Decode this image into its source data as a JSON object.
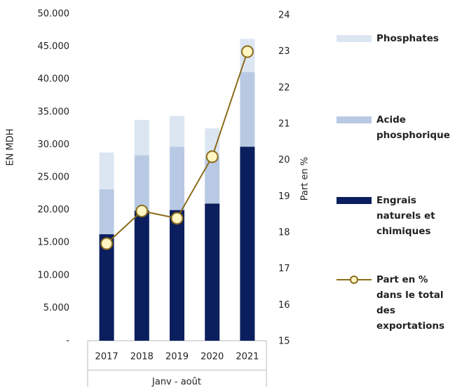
{
  "chart_data": {
    "type": "bar",
    "categories": [
      "2017",
      "2018",
      "2019",
      "2020",
      "2021"
    ],
    "x_label": "Janv - août",
    "y_label": "EN MDH",
    "y2_label": "Part en %",
    "stacked": true,
    "ylim": [
      0,
      50000
    ],
    "yticks": [
      {
        "value": 0,
        "label": "-"
      },
      {
        "value": 5000,
        "label": "5.000"
      },
      {
        "value": 10000,
        "label": "10.000"
      },
      {
        "value": 15000,
        "label": "15.000"
      },
      {
        "value": 20000,
        "label": "20.000"
      },
      {
        "value": 25000,
        "label": "25.000"
      },
      {
        "value": 30000,
        "label": "30.000"
      },
      {
        "value": 35000,
        "label": "35.000"
      },
      {
        "value": 40000,
        "label": "40.000"
      },
      {
        "value": 45000,
        "label": "45.000"
      },
      {
        "value": 50000,
        "label": "50.000"
      }
    ],
    "y2lim": [
      15,
      24
    ],
    "y2ticks": [
      15,
      16,
      17,
      18,
      19,
      20,
      21,
      22,
      23,
      24
    ],
    "series": [
      {
        "name": "Phosphates",
        "color": "#dce6f2",
        "type": "bar",
        "values": [
          5600,
          5400,
          4700,
          4500,
          5100
        ]
      },
      {
        "name": "Acide phosphorique",
        "color": "#b8cae3",
        "type": "bar",
        "values": [
          6900,
          8500,
          9700,
          7000,
          11400
        ]
      },
      {
        "name": "Engrais naturels et chimiques",
        "color": "#0b1f5e",
        "type": "bar",
        "values": [
          16300,
          19900,
          20000,
          21000,
          29700
        ]
      },
      {
        "name": "Part en % dans le total des exportations",
        "color": "#8b6c1c",
        "type": "line",
        "axis": "y2",
        "values": [
          17.7,
          18.6,
          18.4,
          20.1,
          23.0
        ]
      }
    ]
  }
}
